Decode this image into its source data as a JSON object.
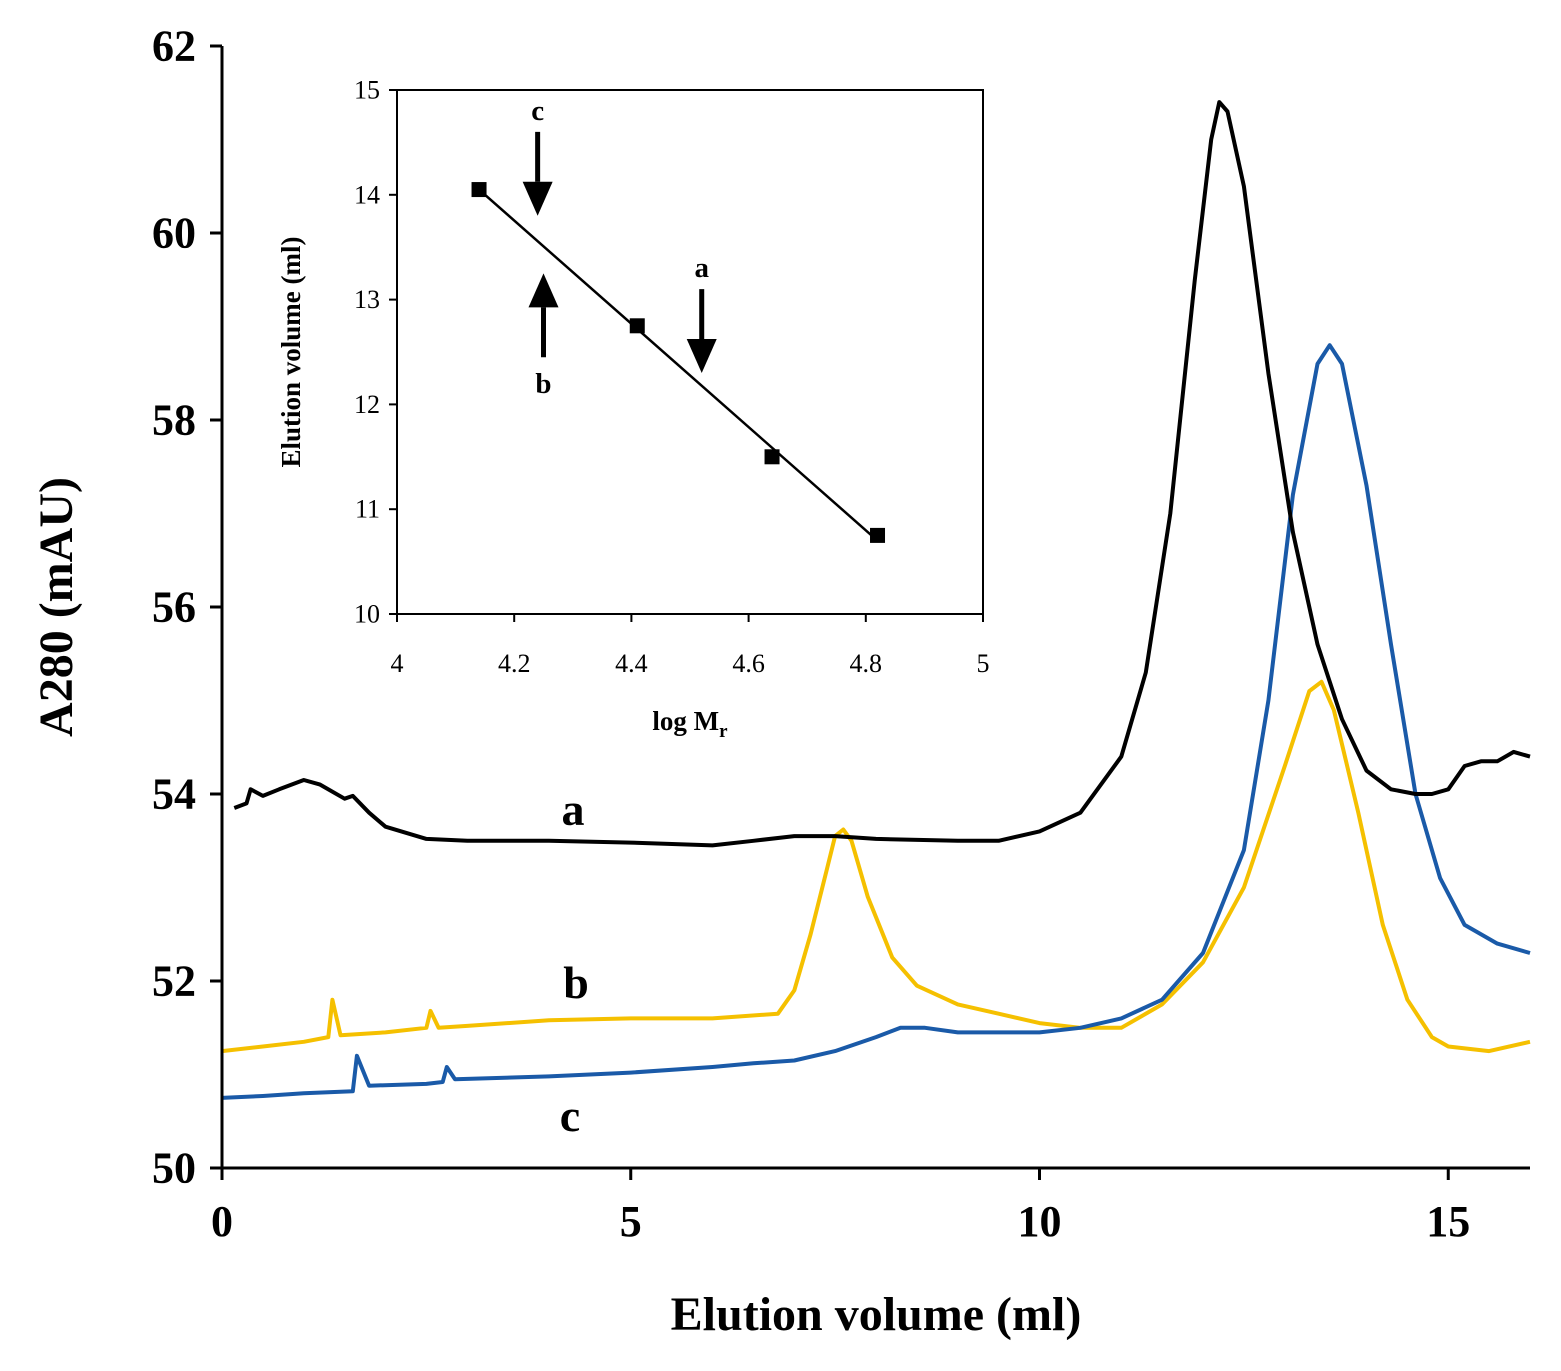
{
  "chart_data": [
    {
      "type": "line",
      "title": "",
      "xlabel": "Elution volume (ml)",
      "ylabel": "A280 (mAU)",
      "xlim": [
        0,
        16
      ],
      "ylim": [
        50,
        62
      ],
      "xticks": [
        0,
        5,
        10,
        15
      ],
      "yticks": [
        50,
        52,
        54,
        56,
        58,
        60,
        62
      ],
      "grid": false,
      "legend": "none (curves labeled directly)",
      "series": [
        {
          "name": "a",
          "color": "#000000",
          "points": [
            [
              0.15,
              53.85
            ],
            [
              0.3,
              53.9
            ],
            [
              0.35,
              54.05
            ],
            [
              0.5,
              53.98
            ],
            [
              0.7,
              54.05
            ],
            [
              1.0,
              54.15
            ],
            [
              1.2,
              54.1
            ],
            [
              1.5,
              53.95
            ],
            [
              1.6,
              53.98
            ],
            [
              1.8,
              53.8
            ],
            [
              2.0,
              53.65
            ],
            [
              2.5,
              53.52
            ],
            [
              3.0,
              53.5
            ],
            [
              4.0,
              53.5
            ],
            [
              5.0,
              53.48
            ],
            [
              6.0,
              53.45
            ],
            [
              6.5,
              53.5
            ],
            [
              7.0,
              53.55
            ],
            [
              7.5,
              53.55
            ],
            [
              8.0,
              53.52
            ],
            [
              9.0,
              53.5
            ],
            [
              9.5,
              53.5
            ],
            [
              10.0,
              53.6
            ],
            [
              10.5,
              53.8
            ],
            [
              11.0,
              54.4
            ],
            [
              11.3,
              55.3
            ],
            [
              11.6,
              57.0
            ],
            [
              11.9,
              59.5
            ],
            [
              12.1,
              61.0
            ],
            [
              12.2,
              61.4
            ],
            [
              12.3,
              61.3
            ],
            [
              12.5,
              60.5
            ],
            [
              12.8,
              58.5
            ],
            [
              13.1,
              56.8
            ],
            [
              13.4,
              55.6
            ],
            [
              13.7,
              54.8
            ],
            [
              14.0,
              54.25
            ],
            [
              14.3,
              54.05
            ],
            [
              14.6,
              54.0
            ],
            [
              14.8,
              54.0
            ],
            [
              15.0,
              54.05
            ],
            [
              15.2,
              54.3
            ],
            [
              15.4,
              54.35
            ],
            [
              15.6,
              54.35
            ],
            [
              15.8,
              54.45
            ],
            [
              16.0,
              54.4
            ]
          ]
        },
        {
          "name": "b",
          "color": "#f5c000",
          "points": [
            [
              0.0,
              51.25
            ],
            [
              0.5,
              51.3
            ],
            [
              1.0,
              51.35
            ],
            [
              1.3,
              51.4
            ],
            [
              1.35,
              51.8
            ],
            [
              1.45,
              51.42
            ],
            [
              2.0,
              51.45
            ],
            [
              2.5,
              51.5
            ],
            [
              2.55,
              51.68
            ],
            [
              2.65,
              51.5
            ],
            [
              3.0,
              51.52
            ],
            [
              4.0,
              51.58
            ],
            [
              5.0,
              51.6
            ],
            [
              6.0,
              51.6
            ],
            [
              6.8,
              51.65
            ],
            [
              7.0,
              51.9
            ],
            [
              7.2,
              52.5
            ],
            [
              7.4,
              53.2
            ],
            [
              7.5,
              53.55
            ],
            [
              7.6,
              53.62
            ],
            [
              7.7,
              53.5
            ],
            [
              7.9,
              52.9
            ],
            [
              8.2,
              52.25
            ],
            [
              8.5,
              51.95
            ],
            [
              9.0,
              51.75
            ],
            [
              9.5,
              51.65
            ],
            [
              10.0,
              51.55
            ],
            [
              10.5,
              51.5
            ],
            [
              11.0,
              51.5
            ],
            [
              11.5,
              51.75
            ],
            [
              12.0,
              52.2
            ],
            [
              12.5,
              53.0
            ],
            [
              13.0,
              54.3
            ],
            [
              13.3,
              55.1
            ],
            [
              13.45,
              55.2
            ],
            [
              13.6,
              54.9
            ],
            [
              13.9,
              53.8
            ],
            [
              14.2,
              52.6
            ],
            [
              14.5,
              51.8
            ],
            [
              14.8,
              51.4
            ],
            [
              15.0,
              51.3
            ],
            [
              15.5,
              51.25
            ],
            [
              16.0,
              51.35
            ]
          ]
        },
        {
          "name": "c",
          "color": "#1a5aa8",
          "points": [
            [
              0.0,
              50.75
            ],
            [
              0.5,
              50.77
            ],
            [
              1.0,
              50.8
            ],
            [
              1.6,
              50.82
            ],
            [
              1.65,
              51.2
            ],
            [
              1.8,
              50.88
            ],
            [
              2.5,
              50.9
            ],
            [
              2.7,
              50.92
            ],
            [
              2.75,
              51.08
            ],
            [
              2.85,
              50.95
            ],
            [
              4.0,
              50.98
            ],
            [
              5.0,
              51.02
            ],
            [
              6.0,
              51.08
            ],
            [
              6.5,
              51.12
            ],
            [
              7.0,
              51.15
            ],
            [
              7.5,
              51.25
            ],
            [
              8.0,
              51.4
            ],
            [
              8.3,
              51.5
            ],
            [
              8.6,
              51.5
            ],
            [
              9.0,
              51.45
            ],
            [
              9.5,
              51.45
            ],
            [
              10.0,
              51.45
            ],
            [
              10.5,
              51.5
            ],
            [
              11.0,
              51.6
            ],
            [
              11.5,
              51.8
            ],
            [
              12.0,
              52.3
            ],
            [
              12.5,
              53.4
            ],
            [
              12.8,
              55.0
            ],
            [
              13.1,
              57.2
            ],
            [
              13.4,
              58.6
            ],
            [
              13.55,
              58.8
            ],
            [
              13.7,
              58.6
            ],
            [
              14.0,
              57.3
            ],
            [
              14.3,
              55.6
            ],
            [
              14.6,
              54.0
            ],
            [
              14.9,
              53.1
            ],
            [
              15.2,
              52.6
            ],
            [
              15.6,
              52.4
            ],
            [
              16.0,
              52.3
            ]
          ]
        }
      ]
    },
    {
      "type": "scatter",
      "title": "",
      "xlabel": "log M",
      "xlabel_subscript": "r",
      "ylabel": "Elution volume (ml)",
      "xlim": [
        4,
        5
      ],
      "ylim": [
        10,
        15
      ],
      "xticks": [
        "4",
        "4.2",
        "4.4",
        "4.6",
        "4.8",
        "5"
      ],
      "yticks": [
        "10",
        "11",
        "12",
        "13",
        "14",
        "15"
      ],
      "grid": false,
      "x": [
        4.14,
        4.41,
        4.64,
        4.82
      ],
      "y": [
        14.05,
        12.75,
        11.5,
        10.75
      ],
      "fit_line": {
        "x": [
          4.14,
          4.82
        ],
        "y": [
          14.05,
          10.7
        ]
      },
      "annotations": [
        {
          "label": "c",
          "x": 4.24,
          "y_from": 14.6,
          "y_to": 13.8,
          "direction": "down",
          "label_position": "above"
        },
        {
          "label": "b",
          "x": 4.25,
          "y_from": 12.45,
          "y_to": 13.25,
          "direction": "up",
          "label_position": "below"
        },
        {
          "label": "a",
          "x": 4.52,
          "y_from": 13.1,
          "y_to": 12.3,
          "direction": "down",
          "label_position": "above"
        }
      ]
    }
  ]
}
